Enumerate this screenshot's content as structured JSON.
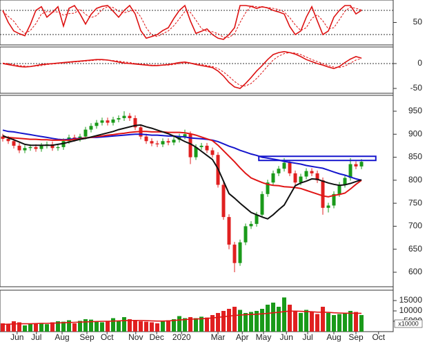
{
  "chart_data": [
    {
      "type": "line",
      "xlim": [
        -0.5,
        70.75
      ],
      "ylim": [
        -5.7,
        105.7
      ],
      "yticks": [
        50
      ],
      "levels": [
        20,
        80
      ],
      "x": [
        0,
        1,
        2,
        3,
        4,
        5,
        6,
        7,
        8,
        9,
        10,
        11,
        12,
        13,
        14,
        15,
        16,
        17,
        18,
        19,
        20,
        21,
        22,
        23,
        24,
        25,
        26,
        27,
        28,
        29,
        30,
        31,
        32,
        33,
        34,
        35,
        36,
        37,
        38,
        39,
        40,
        41,
        42,
        43,
        44,
        45,
        46,
        47,
        48,
        49,
        50,
        51,
        52,
        53,
        54,
        55,
        56,
        57,
        58,
        59,
        60,
        61,
        62,
        63,
        64,
        65
      ],
      "series": [
        {
          "color": "#dd1111",
          "dash": false,
          "values": [
            80,
            50,
            29,
            22,
            17,
            45,
            80,
            89,
            63,
            75,
            89,
            41,
            85,
            92,
            71,
            46,
            70,
            85,
            90,
            92,
            78,
            63,
            80,
            92,
            71,
            30,
            11,
            15,
            20,
            30,
            37,
            60,
            80,
            92,
            54,
            23,
            28,
            34,
            20,
            11,
            8,
            20,
            37,
            92,
            92,
            90,
            85,
            89,
            86,
            80,
            76,
            71,
            40,
            20,
            29,
            63,
            89,
            54,
            20,
            29,
            63,
            80,
            92,
            92,
            71,
            80
          ]
        },
        {
          "color": "#dd1111",
          "dash": true,
          "values": [
            78,
            65,
            53,
            34,
            23,
            30,
            47,
            71,
            77,
            76,
            76,
            68,
            72,
            73,
            83,
            70,
            62,
            67,
            82,
            89,
            87,
            78,
            74,
            78,
            81,
            64,
            37,
            19,
            15,
            22,
            29,
            42,
            59,
            77,
            75,
            56,
            35,
            28,
            27,
            22,
            13,
            13,
            22,
            50,
            74,
            91,
            89,
            88,
            87,
            85,
            82,
            76,
            62,
            44,
            30,
            37,
            60,
            69,
            54,
            34,
            37,
            57,
            78,
            88,
            85,
            81
          ]
        }
      ]
    },
    {
      "type": "line",
      "xlim": [
        -0.5,
        70.75
      ],
      "ylim": [
        -59.7,
        33.3
      ],
      "yticks": [
        0,
        -50
      ],
      "levels": [
        0
      ],
      "x": [
        0,
        1,
        2,
        3,
        4,
        5,
        6,
        7,
        8,
        9,
        10,
        11,
        12,
        13,
        14,
        15,
        16,
        17,
        18,
        19,
        20,
        21,
        22,
        23,
        24,
        25,
        26,
        27,
        28,
        29,
        30,
        31,
        32,
        33,
        34,
        35,
        36,
        37,
        38,
        39,
        40,
        41,
        42,
        43,
        44,
        45,
        46,
        47,
        48,
        49,
        50,
        51,
        52,
        53,
        54,
        55,
        56,
        57,
        58,
        59,
        60,
        61,
        62,
        63,
        64,
        65
      ],
      "series": [
        {
          "color": "#dd1111",
          "dash": false,
          "values": [
            0,
            -2,
            -4,
            -6,
            -7,
            -6,
            -4,
            -2,
            -1,
            0,
            1,
            2,
            3,
            4,
            5,
            6,
            7,
            8,
            8,
            7,
            5,
            3,
            1,
            0,
            -1,
            -2,
            -3,
            -4,
            -4,
            -3,
            -2,
            0,
            2,
            3,
            1,
            -2,
            -4,
            -6,
            -8,
            -15,
            -25,
            -38,
            -47,
            -50,
            -40,
            -28,
            -15,
            -4,
            8,
            18,
            22,
            24,
            22,
            19,
            14,
            8,
            4,
            0,
            -3,
            -7,
            -10,
            -6,
            2,
            9,
            14,
            11
          ]
        },
        {
          "color": "#dd1111",
          "dash": true,
          "values": [
            1,
            0,
            -2,
            -4,
            -5,
            -6,
            -5,
            -4,
            -2,
            -1,
            0,
            1,
            2,
            3,
            4,
            5,
            6,
            7,
            7,
            7,
            6,
            5,
            3,
            2,
            0,
            -1,
            -2,
            -3,
            -3,
            -3,
            -3,
            -2,
            0,
            1,
            1,
            0,
            -2,
            -4,
            -6,
            -10,
            -17,
            -26,
            -36,
            -44,
            -45,
            -40,
            -30,
            -18,
            -5,
            7,
            15,
            20,
            22,
            21,
            18,
            13,
            8,
            4,
            0,
            -4,
            -7,
            -8,
            -5,
            1,
            7,
            10
          ]
        }
      ]
    },
    {
      "type": "candlestick",
      "xlim": [
        -0.5,
        70.75
      ],
      "ylim": [
        568.5,
        984.5
      ],
      "yticks": [
        600,
        650,
        700,
        750,
        800,
        850,
        900,
        950
      ],
      "up_color": "#1a9a1a",
      "down_color": "#e02020",
      "x": [
        0,
        1,
        2,
        3,
        4,
        5,
        6,
        7,
        8,
        9,
        10,
        11,
        12,
        13,
        14,
        15,
        16,
        17,
        18,
        19,
        20,
        21,
        22,
        23,
        24,
        25,
        26,
        27,
        28,
        29,
        30,
        31,
        32,
        33,
        34,
        35,
        36,
        37,
        38,
        39,
        40,
        41,
        42,
        43,
        44,
        45,
        46,
        47,
        48,
        49,
        50,
        51,
        52,
        53,
        54,
        55,
        56,
        57,
        58,
        59,
        60,
        61,
        62,
        63,
        64,
        65
      ],
      "open": [
        895,
        890,
        885,
        875,
        865,
        870,
        872,
        868,
        875,
        878,
        870,
        872,
        885,
        893,
        890,
        895,
        910,
        918,
        925,
        930,
        925,
        932,
        935,
        940,
        935,
        915,
        895,
        885,
        880,
        878,
        885,
        882,
        888,
        895,
        900,
        850,
        872,
        875,
        865,
        855,
        790,
        720,
        660,
        620,
        665,
        700,
        705,
        725,
        770,
        795,
        815,
        825,
        838,
        815,
        795,
        808,
        820,
        815,
        800,
        740,
        745,
        770,
        790,
        805,
        835,
        830
      ],
      "high": [
        901,
        896,
        891,
        881,
        876,
        878,
        878,
        881,
        884,
        884,
        878,
        891,
        899,
        899,
        901,
        916,
        924,
        931,
        936,
        936,
        938,
        941,
        950,
        946,
        941,
        921,
        901,
        891,
        886,
        891,
        891,
        894,
        901,
        910,
        906,
        878,
        881,
        881,
        871,
        861,
        796,
        726,
        666,
        671,
        706,
        711,
        731,
        776,
        801,
        821,
        831,
        848,
        844,
        821,
        814,
        826,
        826,
        821,
        806,
        751,
        776,
        796,
        811,
        848,
        841,
        846
      ],
      "low": [
        884,
        879,
        869,
        859,
        859,
        864,
        862,
        862,
        869,
        864,
        864,
        866,
        879,
        884,
        884,
        889,
        904,
        912,
        919,
        919,
        919,
        926,
        929,
        929,
        909,
        889,
        879,
        874,
        872,
        872,
        876,
        876,
        882,
        889,
        835,
        844,
        866,
        859,
        849,
        784,
        714,
        650,
        600,
        614,
        659,
        694,
        699,
        719,
        764,
        789,
        809,
        819,
        809,
        789,
        789,
        802,
        809,
        794,
        725,
        730,
        739,
        764,
        784,
        799,
        824,
        824
      ],
      "close": [
        890,
        885,
        875,
        865,
        870,
        872,
        868,
        875,
        878,
        870,
        872,
        885,
        893,
        890,
        895,
        910,
        918,
        925,
        930,
        925,
        932,
        935,
        940,
        935,
        915,
        895,
        885,
        880,
        878,
        885,
        882,
        888,
        895,
        900,
        850,
        872,
        875,
        865,
        855,
        790,
        720,
        660,
        620,
        665,
        700,
        705,
        725,
        770,
        795,
        815,
        825,
        838,
        815,
        795,
        808,
        820,
        815,
        800,
        740,
        745,
        770,
        790,
        805,
        835,
        830,
        840
      ],
      "series": [
        {
          "color": "#1515cc",
          "values": [
            909,
            906,
            905,
            903,
            901,
            899,
            897,
            895,
            893,
            891,
            889,
            888,
            889,
            890,
            891,
            892,
            893,
            893,
            894,
            895,
            896,
            897,
            898,
            899,
            900,
            900,
            899,
            898,
            898,
            897,
            896,
            896,
            895,
            894,
            892,
            891,
            890,
            889,
            887,
            884,
            879,
            874,
            870,
            865,
            861,
            857,
            854,
            850,
            848,
            846,
            844,
            841,
            839,
            837,
            835,
            832,
            830,
            828,
            826,
            822,
            818,
            814,
            811,
            807,
            803,
            800
          ]
        },
        {
          "color": "#e01515",
          "values": [
            894,
            893,
            892,
            891,
            890,
            889,
            889,
            888,
            888,
            887,
            887,
            887,
            887,
            889,
            890,
            892,
            893,
            895,
            896,
            898,
            899,
            901,
            902,
            904,
            905,
            906,
            906,
            905,
            905,
            905,
            904,
            904,
            904,
            903,
            901,
            898,
            894,
            890,
            886,
            876,
            864,
            852,
            840,
            827,
            815,
            805,
            800,
            795,
            791,
            789,
            788,
            786,
            785,
            784,
            782,
            778,
            774,
            770,
            766,
            764,
            767,
            769,
            772,
            781,
            791,
            800
          ]
        },
        {
          "color": "#111111",
          "values": [
            897,
            892,
            888,
            883,
            878,
            876,
            876,
            876,
            876,
            876,
            878,
            880,
            883,
            886,
            889,
            891,
            894,
            897,
            900,
            903,
            906,
            910,
            913,
            916,
            919,
            920,
            916,
            913,
            909,
            905,
            901,
            896,
            890,
            884,
            879,
            872,
            863,
            854,
            845,
            825,
            798,
            771,
            761,
            750,
            740,
            730,
            725,
            720,
            716,
            725,
            736,
            746,
            767,
            788,
            794,
            798,
            803,
            802,
            798,
            794,
            791,
            789,
            790,
            793,
            797,
            801
          ]
        }
      ],
      "zone": {
        "x": [
          46.4,
          67.6
        ],
        "y": [
          843,
          852
        ],
        "color": "#1515cc"
      }
    },
    {
      "type": "bar",
      "xlim": [
        -0.5,
        70.75
      ],
      "ylim": [
        0,
        20000
      ],
      "yticks": [
        5000,
        10000,
        15000
      ],
      "unit_label": "x10000",
      "up_color": "#1a9a1a",
      "down_color": "#e02020",
      "x": [
        0,
        1,
        2,
        3,
        4,
        5,
        6,
        7,
        8,
        9,
        10,
        11,
        12,
        13,
        14,
        15,
        16,
        17,
        18,
        19,
        20,
        21,
        22,
        23,
        24,
        25,
        26,
        27,
        28,
        29,
        30,
        31,
        32,
        33,
        34,
        35,
        36,
        37,
        38,
        39,
        40,
        41,
        42,
        43,
        44,
        45,
        46,
        47,
        48,
        49,
        50,
        51,
        52,
        53,
        54,
        55,
        56,
        57,
        58,
        59,
        60,
        61,
        62,
        63,
        64,
        65
      ],
      "values": [
        4000,
        3500,
        5000,
        4500,
        3000,
        4000,
        3800,
        4200,
        3600,
        4500,
        5000,
        4800,
        5500,
        4000,
        5200,
        6000,
        5800,
        5000,
        4500,
        5200,
        6500,
        5000,
        7000,
        6000,
        5500,
        5000,
        4800,
        4500,
        4000,
        5000,
        5500,
        6000,
        7500,
        6500,
        7000,
        6500,
        7200,
        6800,
        8000,
        9000,
        10000,
        11000,
        12000,
        10500,
        9000,
        9500,
        10000,
        11000,
        13000,
        14000,
        12000,
        16500,
        13000,
        10000,
        9000,
        10500,
        9500,
        8500,
        12000,
        9000,
        8000,
        8500,
        9000,
        10000,
        9500,
        8000
      ],
      "series": [
        {
          "color": "#e01515",
          "values": [
            3500,
            3600,
            3700,
            3800,
            3800,
            3800,
            3900,
            4000,
            4000,
            4100,
            4200,
            4300,
            4400,
            4500,
            4600,
            4700,
            4800,
            4900,
            5000,
            5000,
            5100,
            5200,
            5300,
            5400,
            5400,
            5400,
            5300,
            5200,
            5100,
            5100,
            5200,
            5400,
            5600,
            5800,
            6000,
            6100,
            6200,
            6400,
            6600,
            6900,
            7200,
            7500,
            7800,
            8000,
            8200,
            8300,
            8400,
            8600,
            8800,
            9100,
            9300,
            9700,
            9900,
            9900,
            9800,
            9700,
            9600,
            9400,
            9400,
            9300,
            9100,
            9000,
            8900,
            8900,
            8900,
            8800
          ]
        }
      ],
      "xticks": [
        {
          "value": 2.6,
          "label": "Jun"
        },
        {
          "value": 6.1,
          "label": "Jul"
        },
        {
          "value": 10.75,
          "label": "Aug"
        },
        {
          "value": 15.25,
          "label": "Sep"
        },
        {
          "value": 18.9,
          "label": "Oct"
        },
        {
          "value": 24.1,
          "label": "Nov"
        },
        {
          "value": 27.9,
          "label": "Dec"
        },
        {
          "value": 32.4,
          "label": "2020"
        },
        {
          "value": 39,
          "label": "Mar"
        },
        {
          "value": 43.4,
          "label": "Apr"
        },
        {
          "value": 47.25,
          "label": "May"
        },
        {
          "value": 51.4,
          "label": "Jun"
        },
        {
          "value": 55.25,
          "label": "Jul"
        },
        {
          "value": 60,
          "label": "Aug"
        },
        {
          "value": 64,
          "label": "Sep"
        },
        {
          "value": 68.1,
          "label": "Oct"
        }
      ]
    }
  ]
}
